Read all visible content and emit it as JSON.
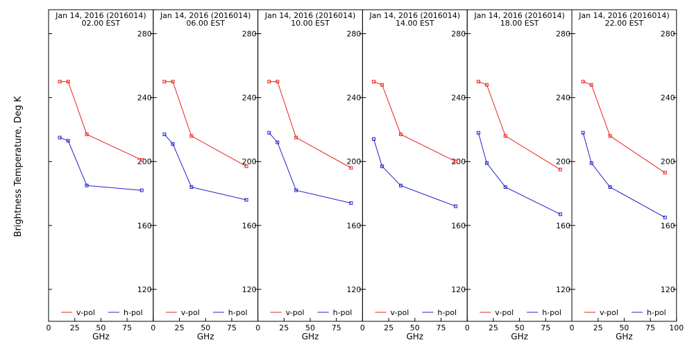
{
  "figure": {
    "ylabel": "Brightness Temperature, Deg K",
    "xlabel": "GHz",
    "ylim": [
      100,
      295
    ],
    "xlim": [
      0,
      100
    ],
    "yticks": [
      120,
      160,
      200,
      240,
      280
    ],
    "xticks": [
      0,
      25,
      50,
      75
    ],
    "xticks_last_panel": [
      0,
      25,
      50,
      75,
      100
    ],
    "grid": false,
    "legend_position": "bottom",
    "colors": {
      "v_pol": "#e8211b",
      "h_pol": "#1f1fcc",
      "frame": "#000000"
    }
  },
  "chart_data": [
    {
      "type": "line",
      "title": "Jan 14, 2016 (2016014)",
      "subtitle": "02.00 EST",
      "xlabel": "GHz",
      "series": [
        {
          "name": "v-pol",
          "x": [
            10.7,
            18.7,
            36.5,
            89.0
          ],
          "values": [
            250,
            250,
            217,
            201
          ]
        },
        {
          "name": "h-pol",
          "x": [
            10.7,
            18.7,
            36.5,
            89.0
          ],
          "values": [
            215,
            213,
            185,
            182
          ]
        }
      ]
    },
    {
      "type": "line",
      "title": "Jan 14, 2016 (2016014)",
      "subtitle": "06.00 EST",
      "xlabel": "GHz",
      "series": [
        {
          "name": "v-pol",
          "x": [
            10.7,
            18.7,
            36.5,
            89.0
          ],
          "values": [
            250,
            250,
            216,
            197
          ]
        },
        {
          "name": "h-pol",
          "x": [
            10.7,
            18.7,
            36.5,
            89.0
          ],
          "values": [
            217,
            211,
            184,
            176
          ]
        }
      ]
    },
    {
      "type": "line",
      "title": "Jan 14, 2016 (2016014)",
      "subtitle": "10.00 EST",
      "xlabel": "GHz",
      "series": [
        {
          "name": "v-pol",
          "x": [
            10.7,
            18.7,
            36.5,
            89.0
          ],
          "values": [
            250,
            250,
            215,
            196
          ]
        },
        {
          "name": "h-pol",
          "x": [
            10.7,
            18.7,
            36.5,
            89.0
          ],
          "values": [
            218,
            212,
            182,
            174
          ]
        }
      ]
    },
    {
      "type": "line",
      "title": "Jan 14, 2016 (2016014)",
      "subtitle": "14.00 EST",
      "xlabel": "GHz",
      "series": [
        {
          "name": "v-pol",
          "x": [
            10.7,
            18.7,
            36.5,
            89.0
          ],
          "values": [
            250,
            248,
            217,
            200
          ]
        },
        {
          "name": "h-pol",
          "x": [
            10.7,
            18.7,
            36.5,
            89.0
          ],
          "values": [
            214,
            197,
            185,
            172
          ]
        }
      ]
    },
    {
      "type": "line",
      "title": "Jan 14, 2016 (2016014)",
      "subtitle": "18.00 EST",
      "xlabel": "GHz",
      "series": [
        {
          "name": "v-pol",
          "x": [
            10.7,
            18.7,
            36.5,
            89.0
          ],
          "values": [
            250,
            248,
            216,
            195
          ]
        },
        {
          "name": "h-pol",
          "x": [
            10.7,
            18.7,
            36.5,
            89.0
          ],
          "values": [
            218,
            199,
            184,
            167
          ]
        }
      ]
    },
    {
      "type": "line",
      "title": "Jan 14, 2016 (2016014)",
      "subtitle": "22.00 EST",
      "xlabel": "GHz",
      "series": [
        {
          "name": "v-pol",
          "x": [
            10.7,
            18.7,
            36.5,
            89.0
          ],
          "values": [
            250,
            248,
            216,
            193
          ]
        },
        {
          "name": "h-pol",
          "x": [
            10.7,
            18.7,
            36.5,
            89.0
          ],
          "values": [
            218,
            199,
            184,
            165
          ]
        }
      ]
    }
  ]
}
